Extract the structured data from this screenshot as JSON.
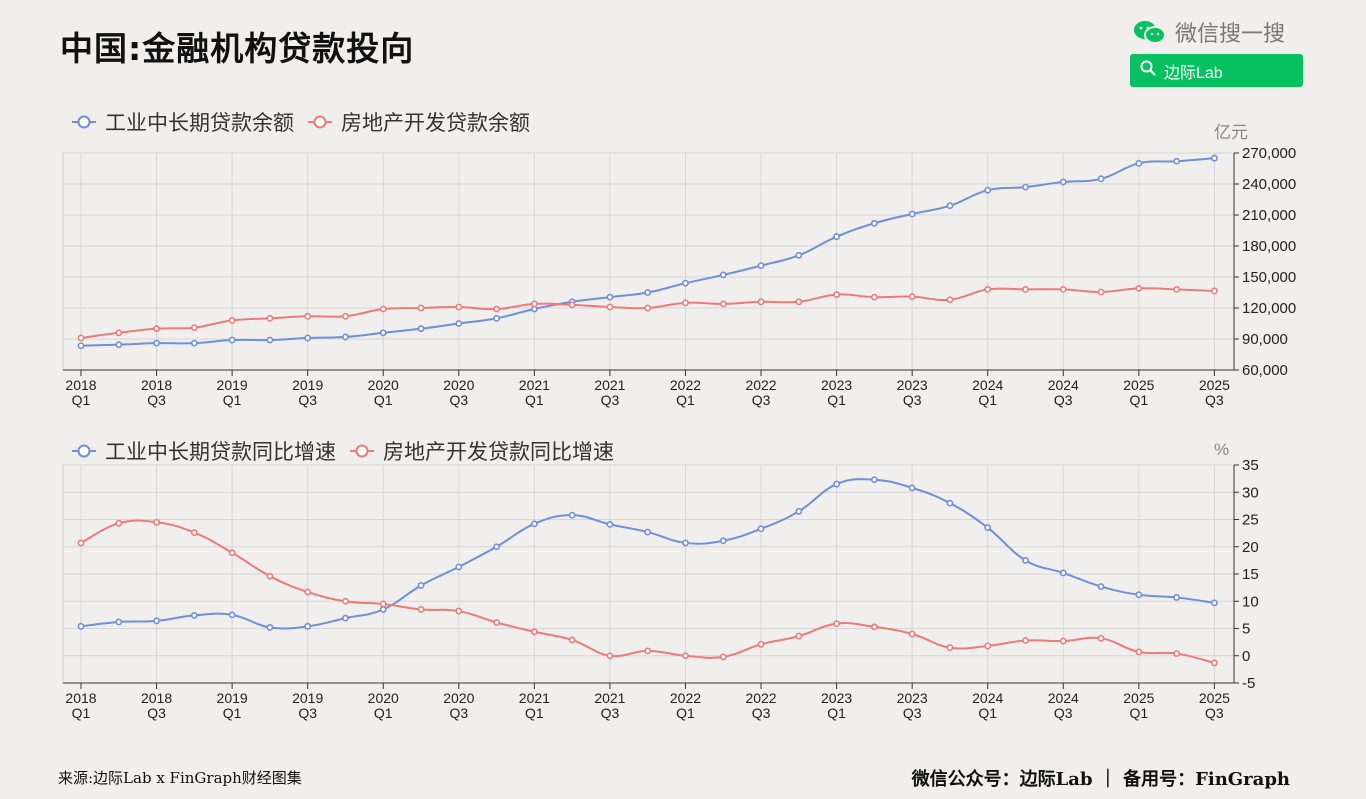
{
  "title": "中国:金融机构贷款投向",
  "brand": {
    "name": "微信搜一搜",
    "search_label": "边际Lab",
    "accent": "#07c160"
  },
  "footer": {
    "source": "来源:边际Lab x FinGraph财经图集",
    "account": "微信公众号：边际Lab ｜ 备用号：FinGraph"
  },
  "colors": {
    "blue": "#6f8fd8",
    "red": "#ec7b78",
    "grid": "#d6d6d6"
  },
  "chart_data": [
    {
      "type": "line",
      "unit": "亿元",
      "ylim": [
        60000,
        270000
      ],
      "yticks": [
        60000,
        90000,
        120000,
        150000,
        180000,
        210000,
        240000,
        270000
      ],
      "ytick_labels": [
        "60,000",
        "90,000",
        "120,000",
        "150,000",
        "180,000",
        "210,000",
        "240,000",
        "270,000"
      ],
      "xtick_labels": [
        [
          "2018",
          "Q1"
        ],
        [
          "2018",
          "Q3"
        ],
        [
          "2019",
          "Q1"
        ],
        [
          "2019",
          "Q3"
        ],
        [
          "2020",
          "Q1"
        ],
        [
          "2020",
          "Q3"
        ],
        [
          "2021",
          "Q1"
        ],
        [
          "2021",
          "Q3"
        ],
        [
          "2022",
          "Q1"
        ],
        [
          "2022",
          "Q3"
        ],
        [
          "2023",
          "Q1"
        ],
        [
          "2023",
          "Q3"
        ],
        [
          "2024",
          "Q1"
        ],
        [
          "2024",
          "Q3"
        ],
        [
          "2025",
          "Q1"
        ],
        [
          "2025",
          "Q3"
        ]
      ],
      "x": [
        "2018Q1",
        "2018Q2",
        "2018Q3",
        "2018Q4",
        "2019Q1",
        "2019Q2",
        "2019Q3",
        "2019Q4",
        "2020Q1",
        "2020Q2",
        "2020Q3",
        "2020Q4",
        "2021Q1",
        "2021Q2",
        "2021Q3",
        "2021Q4",
        "2022Q1",
        "2022Q2",
        "2022Q3",
        "2022Q4",
        "2023Q1",
        "2023Q2",
        "2023Q3",
        "2023Q4",
        "2024Q1",
        "2024Q2",
        "2024Q3",
        "2024Q4",
        "2025Q1",
        "2025Q2",
        "2025Q3"
      ],
      "grid": true,
      "legend_position": "top-left",
      "series": [
        {
          "name": "工业中长期贷款余额",
          "color": "blue",
          "values": [
            83500,
            84500,
            86000,
            86000,
            89000,
            89000,
            91000,
            92000,
            96000,
            100000,
            105000,
            110000,
            119000,
            126000,
            130500,
            135000,
            144000,
            152000,
            161000,
            171000,
            189000,
            202000,
            211000,
            219000,
            234000,
            237000,
            242000,
            245000,
            260000,
            262000,
            265000
          ]
        },
        {
          "name": "房地产开发贷款余额",
          "color": "red",
          "values": [
            91000,
            96000,
            100000,
            101000,
            108000,
            110000,
            112000,
            112000,
            119000,
            120000,
            121000,
            119000,
            124000,
            123000,
            121000,
            120000,
            125000,
            124000,
            126000,
            126000,
            133000,
            130500,
            131000,
            128000,
            138000,
            138000,
            138000,
            135500,
            139000,
            138000,
            136500
          ]
        }
      ]
    },
    {
      "type": "line",
      "unit": "%",
      "ylim": [
        -5,
        35
      ],
      "yticks": [
        -5,
        0,
        5,
        10,
        15,
        20,
        25,
        30,
        35
      ],
      "ytick_labels": [
        "-5",
        "0",
        "5",
        "10",
        "15",
        "20",
        "25",
        "30",
        "35"
      ],
      "xtick_labels": [
        [
          "2018",
          "Q1"
        ],
        [
          "2018",
          "Q3"
        ],
        [
          "2019",
          "Q1"
        ],
        [
          "2019",
          "Q3"
        ],
        [
          "2020",
          "Q1"
        ],
        [
          "2020",
          "Q3"
        ],
        [
          "2021",
          "Q1"
        ],
        [
          "2021",
          "Q3"
        ],
        [
          "2022",
          "Q1"
        ],
        [
          "2022",
          "Q3"
        ],
        [
          "2023",
          "Q1"
        ],
        [
          "2023",
          "Q3"
        ],
        [
          "2024",
          "Q1"
        ],
        [
          "2024",
          "Q3"
        ],
        [
          "2025",
          "Q1"
        ],
        [
          "2025",
          "Q3"
        ]
      ],
      "x": [
        "2018Q1",
        "2018Q2",
        "2018Q3",
        "2018Q4",
        "2019Q1",
        "2019Q2",
        "2019Q3",
        "2019Q4",
        "2020Q1",
        "2020Q2",
        "2020Q3",
        "2020Q4",
        "2021Q1",
        "2021Q2",
        "2021Q3",
        "2021Q4",
        "2022Q1",
        "2022Q2",
        "2022Q3",
        "2022Q4",
        "2023Q1",
        "2023Q2",
        "2023Q3",
        "2023Q4",
        "2024Q1",
        "2024Q2",
        "2024Q3",
        "2024Q4",
        "2025Q1",
        "2025Q2",
        "2025Q3"
      ],
      "grid": true,
      "legend_position": "top-left",
      "series": [
        {
          "name": "工业中长期贷款同比增速",
          "color": "blue",
          "values": [
            5.4,
            6.2,
            6.4,
            7.4,
            7.5,
            5.2,
            5.4,
            6.9,
            8.5,
            12.9,
            16.3,
            20.0,
            24.2,
            25.8,
            24.1,
            22.7,
            20.7,
            21.1,
            23.3,
            26.5,
            31.5,
            32.3,
            30.8,
            28.0,
            23.5,
            17.5,
            15.2,
            12.7,
            11.2,
            10.7,
            9.7
          ]
        },
        {
          "name": "房地产开发贷款同比增速",
          "color": "red",
          "values": [
            20.7,
            24.3,
            24.5,
            22.6,
            18.9,
            14.6,
            11.7,
            10.0,
            9.5,
            8.5,
            8.2,
            6.1,
            4.4,
            2.9,
            0.0,
            0.9,
            0.0,
            -0.2,
            2.1,
            3.6,
            5.9,
            5.3,
            4.0,
            1.5,
            1.8,
            2.8,
            2.7,
            3.2,
            0.7,
            0.4,
            -1.3
          ]
        }
      ]
    }
  ]
}
